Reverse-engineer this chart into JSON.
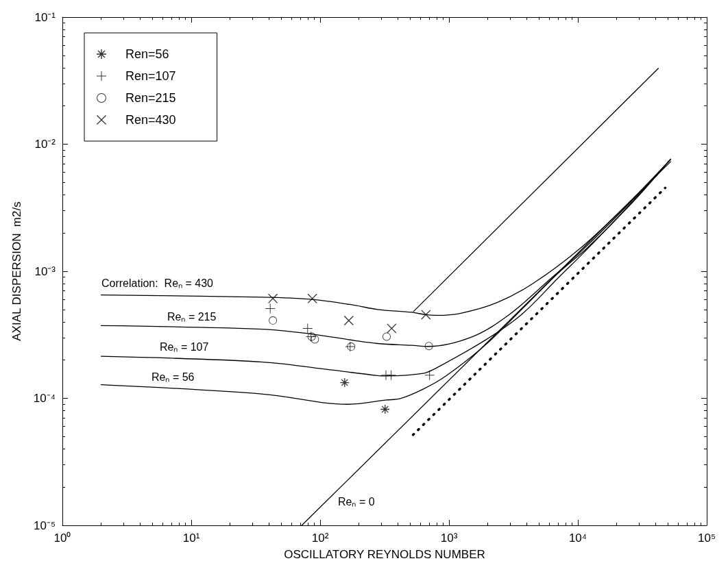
{
  "chart_data": {
    "type": "line",
    "xlabel": "OSCILLATORY REYNOLDS NUMBER",
    "ylabel": "AXIAL DISPERSION  m2/s",
    "log": "xy",
    "grid": false,
    "legend": "top left",
    "xlim": [
      1,
      100000
    ],
    "ylim": [
      1e-05,
      0.1
    ],
    "xticks": [
      {
        "value": 1,
        "label": "10⁰"
      },
      {
        "value": 10,
        "label": "10¹"
      },
      {
        "value": 100,
        "label": "10²"
      },
      {
        "value": 1000,
        "label": "10³"
      },
      {
        "value": 10000,
        "label": "10⁴"
      },
      {
        "value": 100000,
        "label": "10⁵"
      }
    ],
    "yticks": [
      {
        "value": 1e-05,
        "label": "10⁻⁵"
      },
      {
        "value": 0.0001,
        "label": "10⁻⁴"
      },
      {
        "value": 0.001,
        "label": "10⁻³"
      },
      {
        "value": 0.01,
        "label": "10⁻²"
      },
      {
        "value": 0.1,
        "label": "10⁻¹"
      }
    ],
    "series": [
      {
        "color": "#000000",
        "marker": "none",
        "line_style": "solid",
        "x": [
          2,
          36,
          87,
          185,
          279,
          514,
          660,
          805,
          1218,
          2350,
          4530,
          10860,
          26000,
          52500
        ],
        "values": [
          0.00065,
          0.000625,
          0.0006,
          0.00054,
          0.0005,
          0.000475,
          0.000455,
          0.00045,
          0.000466,
          0.000566,
          0.000807,
          0.00157,
          0.00363,
          0.00762
        ]
      },
      {
        "color": "#000000",
        "marker": "none",
        "line_style": "solid",
        "x": [
          2,
          36,
          87,
          185,
          279,
          514,
          690,
          1517,
          2925,
          5630,
          10860,
          26000,
          52500
        ],
        "values": [
          0.000373,
          0.00035,
          0.00032,
          0.000285,
          0.00027,
          0.000261,
          0.000256,
          0.000305,
          0.000455,
          0.000807,
          0.00147,
          0.00355,
          0.00762
        ]
      },
      {
        "color": "#000000",
        "marker": "none",
        "line_style": "solid",
        "x": [
          2,
          36,
          123,
          279,
          328,
          630,
          787,
          1890,
          3640,
          7010,
          11860,
          26000,
          52500
        ],
        "values": [
          0.000214,
          0.000193,
          0.000167,
          0.000151,
          0.00015,
          0.000157,
          0.000172,
          0.000285,
          0.000455,
          0.000883,
          0.0015,
          0.00345,
          0.00762
        ]
      },
      {
        "color": "#000000",
        "marker": "none",
        "line_style": "solid",
        "x": [
          2,
          36,
          164,
          328,
          419,
          630,
          948,
          1890,
          3640,
          7010,
          11860,
          26000,
          52500
        ],
        "values": [
          0.000128,
          0.000108,
          8.97e-05,
          9.7e-05,
          9.95e-05,
          0.000118,
          0.00015,
          0.00026,
          0.000497,
          0.000964,
          0.00153,
          0.0034,
          0.00762
        ]
      },
      {
        "color": "#000000",
        "marker": "none",
        "line_style": "solid",
        "x": [
          72,
          52500
        ],
        "values": [
          1e-05,
          0.0073
        ]
      },
      {
        "color": "#000000",
        "marker": "none",
        "line_style": "solid",
        "x": [
          531,
          42100
        ],
        "values": [
          0.000483,
          0.0395
        ]
      },
      {
        "color": "#000000",
        "marker": "none",
        "line_style": "dotted",
        "x": [
          526,
          47600
        ],
        "values": [
          5.16e-05,
          0.00453
        ]
      },
      {
        "type": "scatter",
        "name": "Ren=56",
        "color": "#000000",
        "marker": "star",
        "x": [
          155,
          319
        ],
        "values": [
          0.000133,
          8.2e-05
        ]
      },
      {
        "type": "scatter",
        "name": "Ren=107",
        "color": "#000000",
        "marker": "plus",
        "x": [
          41,
          80,
          85,
          171,
          324,
          356,
          707
        ],
        "values": [
          0.000508,
          0.000355,
          0.000306,
          0.000255,
          0.000152,
          0.000152,
          0.000152
        ]
      },
      {
        "type": "scatter",
        "name": "Ren=215",
        "color": "#000000",
        "marker": "circle",
        "x": [
          43,
          86,
          91,
          174,
          328,
          698
        ],
        "values": [
          0.00041,
          0.000306,
          0.000291,
          0.000255,
          0.000306,
          0.000258
        ]
      },
      {
        "type": "scatter",
        "name": "Ren=430",
        "color": "#000000",
        "marker": "cross",
        "x": [
          43,
          87,
          167,
          359,
          662
        ],
        "values": [
          0.00061,
          0.00061,
          0.000409,
          0.000355,
          0.000455
        ]
      }
    ],
    "annotations": [
      "Correlation:  Reₙ = 430",
      "Reₙ = 215",
      "Reₙ = 107",
      "Reₙ = 56",
      "Reₙ = 0"
    ]
  }
}
